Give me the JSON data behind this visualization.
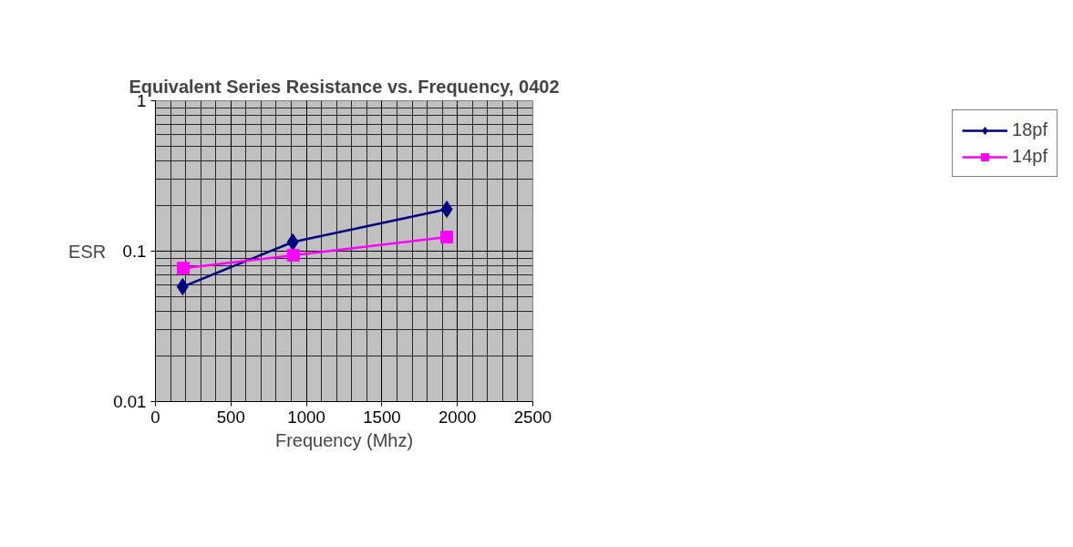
{
  "chart_data": {
    "type": "line",
    "title": "Equivalent Series Resistance vs. Frequency, 0402",
    "xlabel": "Frequency (Mhz)",
    "ylabel": "ESR",
    "series": [
      {
        "name": "18pf",
        "color": "#000080",
        "marker": "diamond",
        "x": [
          180,
          910,
          1930
        ],
        "values": [
          0.058,
          0.115,
          0.19
        ]
      },
      {
        "name": "14pf",
        "color": "#ff00ff",
        "marker": "square",
        "x": [
          185,
          913,
          1930
        ],
        "values": [
          0.077,
          0.094,
          0.124
        ]
      }
    ],
    "xlim": [
      0,
      2500
    ],
    "xticks": [
      0,
      500,
      1000,
      1500,
      2000,
      2500
    ],
    "ylim": [
      0.01,
      1
    ],
    "yticks": [
      0.01,
      0.1,
      1
    ],
    "log": true,
    "grid": true,
    "legend": "right",
    "line_style": "solid"
  }
}
